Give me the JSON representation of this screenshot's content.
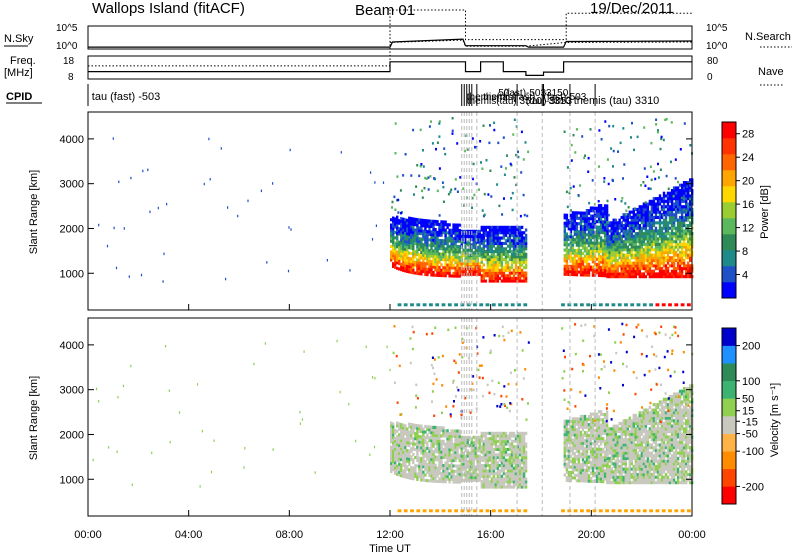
{
  "header": {
    "site": "Wallops Island (fitACF)",
    "beam": "Beam 01",
    "date": "19/Dec/2011"
  },
  "colors": {
    "axis": "#000000",
    "dashed_lines": "#bbbbbb",
    "velocity_ground": "#c8c8be"
  },
  "chart_data": [
    {
      "type": "line",
      "panel": "noise",
      "left_label_top": "N.Sky",
      "left_ticks": [
        "10^5",
        "10^0"
      ],
      "right_label": "N.Search",
      "right_legend_style": "dotted",
      "right_ticks": [
        "10^5",
        "10^0"
      ],
      "series": [
        {
          "name": "N.Sky",
          "style": "solid",
          "x": [
            0,
            12,
            12.1,
            14.9,
            15.0,
            17.4,
            17.5,
            18.9,
            19.0,
            24
          ],
          "y": [
            0,
            0,
            1.1,
            1.7,
            0.3,
            0.3,
            0,
            0,
            1.2,
            1.3
          ]
        },
        {
          "name": "N.Search",
          "style": "dotted",
          "x": [
            12,
            14.9,
            15.0,
            17.4,
            19.0,
            24
          ],
          "y": [
            1.0,
            1.5,
            0.2,
            0.2,
            1.0,
            1.1
          ]
        }
      ]
    },
    {
      "type": "line",
      "panel": "frequency",
      "left_label_top": "Freq.",
      "left_label_bottom": "[MHz]",
      "left_ticks": [
        18,
        8
      ],
      "right_label": "Nave",
      "right_legend_style": "dotted",
      "right_ticks": [
        80,
        0
      ],
      "series": [
        {
          "name": "Freq.",
          "style": "solid",
          "x": [
            0,
            12,
            12,
            15,
            15,
            15.6,
            15.6,
            16.5,
            16.5,
            17.4,
            17.4,
            18.1,
            18.1,
            18.9,
            18.9,
            24
          ],
          "y": [
            10.5,
            10.5,
            16.5,
            16.5,
            10.5,
            10.5,
            16.5,
            16.5,
            10.5,
            10.5,
            8.2,
            8.2,
            10.2,
            10.2,
            16.5,
            16.5
          ]
        },
        {
          "name": "Nave",
          "style": "dotted",
          "x": [
            0,
            12,
            12,
            15,
            15,
            19,
            19,
            24
          ],
          "y": [
            14,
            14,
            48,
            48,
            30,
            30,
            46,
            46
          ]
        }
      ]
    },
    {
      "type": "table",
      "panel": "cpid",
      "left_label": "CPID",
      "entries": [
        {
          "x": 0.15,
          "text": "tau (fast)  -503"
        },
        {
          "x": 15.05,
          "text": "themis(tau)"
        },
        {
          "x": 15.05,
          "text": "themis(tau) 3510"
        },
        {
          "x": 15.7,
          "text": "themis(fast)"
        },
        {
          "x": 16.3,
          "text": "50"
        },
        {
          "x": 16.5,
          "text": "(fast)-503"
        },
        {
          "x": 17.4,
          "text": "(tau)-5053"
        },
        {
          "x": 18.1,
          "text": "(fast)-503"
        },
        {
          "x": 18.2,
          "text": "3150"
        },
        {
          "x": 18.3,
          "text": "3310"
        },
        {
          "x": 19.3,
          "text": "themis (tau)  3310"
        }
      ],
      "changes": [
        14.85,
        14.95,
        15.05,
        15.15,
        15.25,
        15.45,
        17.05,
        18.05,
        18.1,
        19.15,
        20.15
      ]
    },
    {
      "type": "heatmap",
      "panel": "power",
      "ylabel": "Slant Range [km]",
      "yticks": [
        1000,
        2000,
        3000,
        4000
      ],
      "ylim": [
        180,
        4600
      ],
      "xlim": [
        0,
        24
      ],
      "colorbar_label": "Power [dB]",
      "colorbar_ticks": [
        4,
        8,
        12,
        16,
        20,
        24,
        28
      ],
      "colorbar_range": [
        0,
        30
      ],
      "colorbar_colors": [
        "#0000ff",
        "#1e50c8",
        "#1f8a8a",
        "#2e8b57",
        "#5cb85c",
        "#9acd32",
        "#ffd700",
        "#ffa500",
        "#ff6600",
        "#ff3300",
        "#ff0000"
      ],
      "dashed_times": [
        14.85,
        14.95,
        15.05,
        15.15,
        15.25,
        15.45,
        17.05,
        18.05,
        19.15,
        20.15
      ]
    },
    {
      "type": "heatmap",
      "panel": "velocity",
      "ylabel": "Slant Range [km]",
      "yticks": [
        1000,
        2000,
        3000,
        4000
      ],
      "ylim": [
        180,
        4600
      ],
      "xlim": [
        0,
        24
      ],
      "colorbar_label": "Velocity [m s⁻¹]",
      "colorbar_ticks": [
        200,
        100,
        50,
        15,
        -15,
        -50,
        -100,
        -200
      ],
      "colorbar_range": [
        -250,
        250
      ],
      "colorbar_colors": [
        "#ff0000",
        "#ff4500",
        "#ff8c00",
        "#ffb347",
        "#c8c8be",
        "#90d050",
        "#3cb371",
        "#2e8b57",
        "#1e90ff",
        "#0000cd"
      ],
      "dashed_times": [
        14.85,
        14.95,
        15.05,
        15.15,
        15.25,
        15.45,
        17.05,
        18.05,
        19.15,
        20.15
      ]
    },
    {
      "type": "table",
      "panel": "time_axis",
      "xlabel": "Time UT",
      "xticks": [
        "00:00",
        "04:00",
        "08:00",
        "12:00",
        "16:00",
        "20:00",
        "00:00"
      ],
      "xtick_values": [
        0,
        4,
        8,
        12,
        16,
        20,
        24
      ]
    }
  ]
}
